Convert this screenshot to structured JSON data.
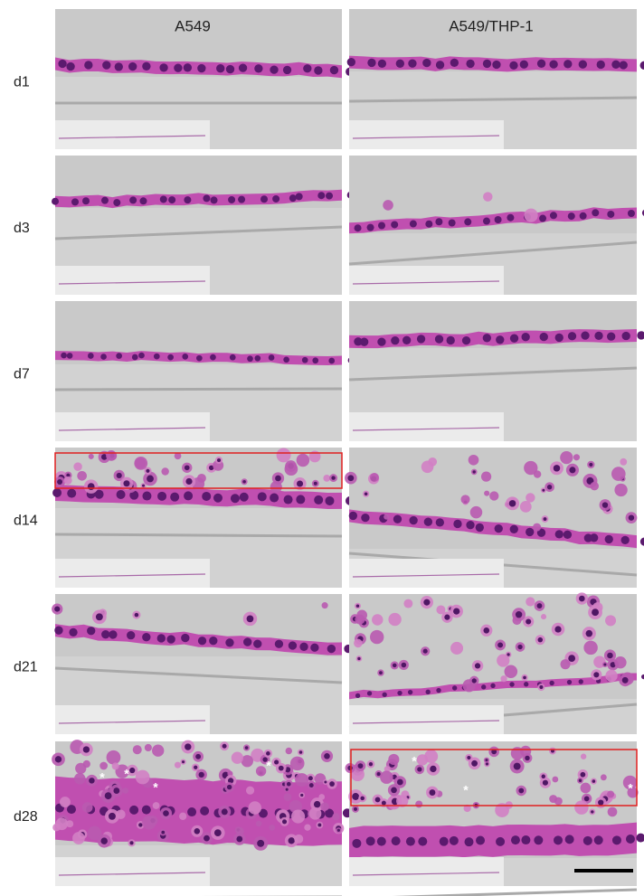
{
  "columns": [
    "A549",
    "A549/THP-1"
  ],
  "rows": [
    "d1",
    "d3",
    "d7",
    "d14",
    "d21",
    "d28"
  ],
  "d28_markers": {
    "A549": [
      "*",
      "*",
      "*",
      "*"
    ],
    "A549/THP-1": [
      "*",
      "*",
      "*"
    ]
  }
}
